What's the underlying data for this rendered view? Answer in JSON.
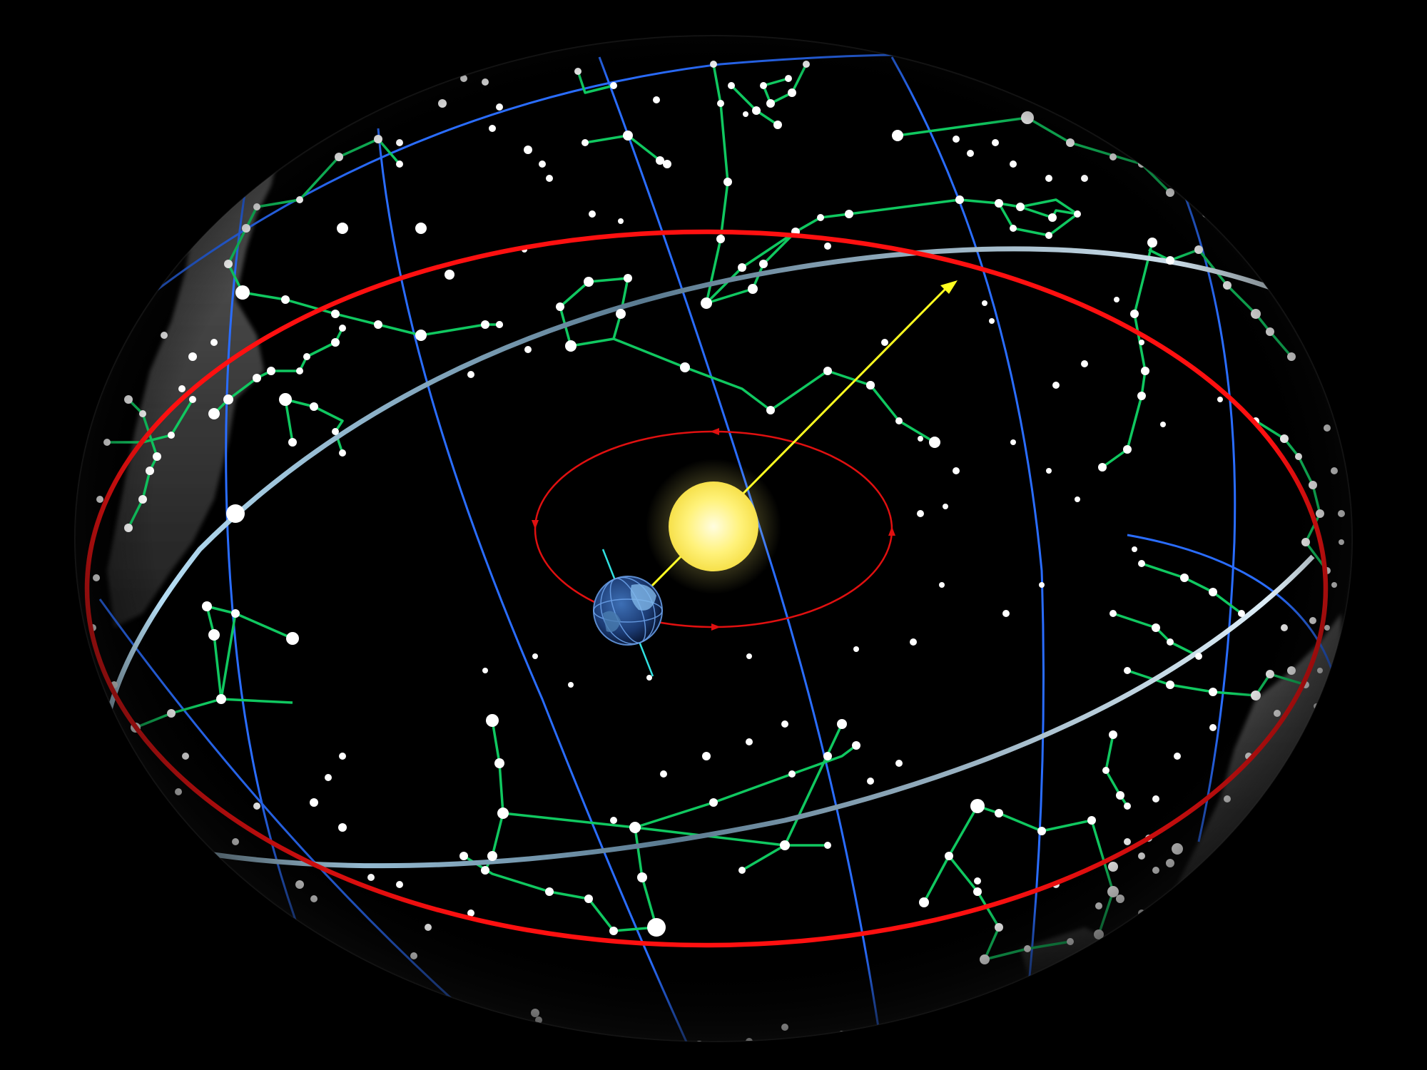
{
  "diagram": {
    "labels": [],
    "colors": {
      "background": "#000000",
      "ecliptic": "#ff1010",
      "earth_orbit": "#e01010",
      "celestial_equator": "#bfe8ff",
      "grid_lines": "#2a6dff",
      "constellation_lines": "#10c860",
      "stars": "#ffffff",
      "sun": "#fff27a",
      "sight_line": "#ffff20",
      "earth_axis": "#30e0e0",
      "milky_way": "#6e6e6e"
    },
    "elements": {
      "celestial_sphere": "celestial-sphere",
      "sun": "sun",
      "earth": "earth",
      "earth_orbit": "earth-orbit",
      "ecliptic": "ecliptic-circle",
      "celestial_equator": "celestial-equator",
      "sight_line": "earth-sun-sightline",
      "earth_axis": "earth-axis"
    }
  }
}
